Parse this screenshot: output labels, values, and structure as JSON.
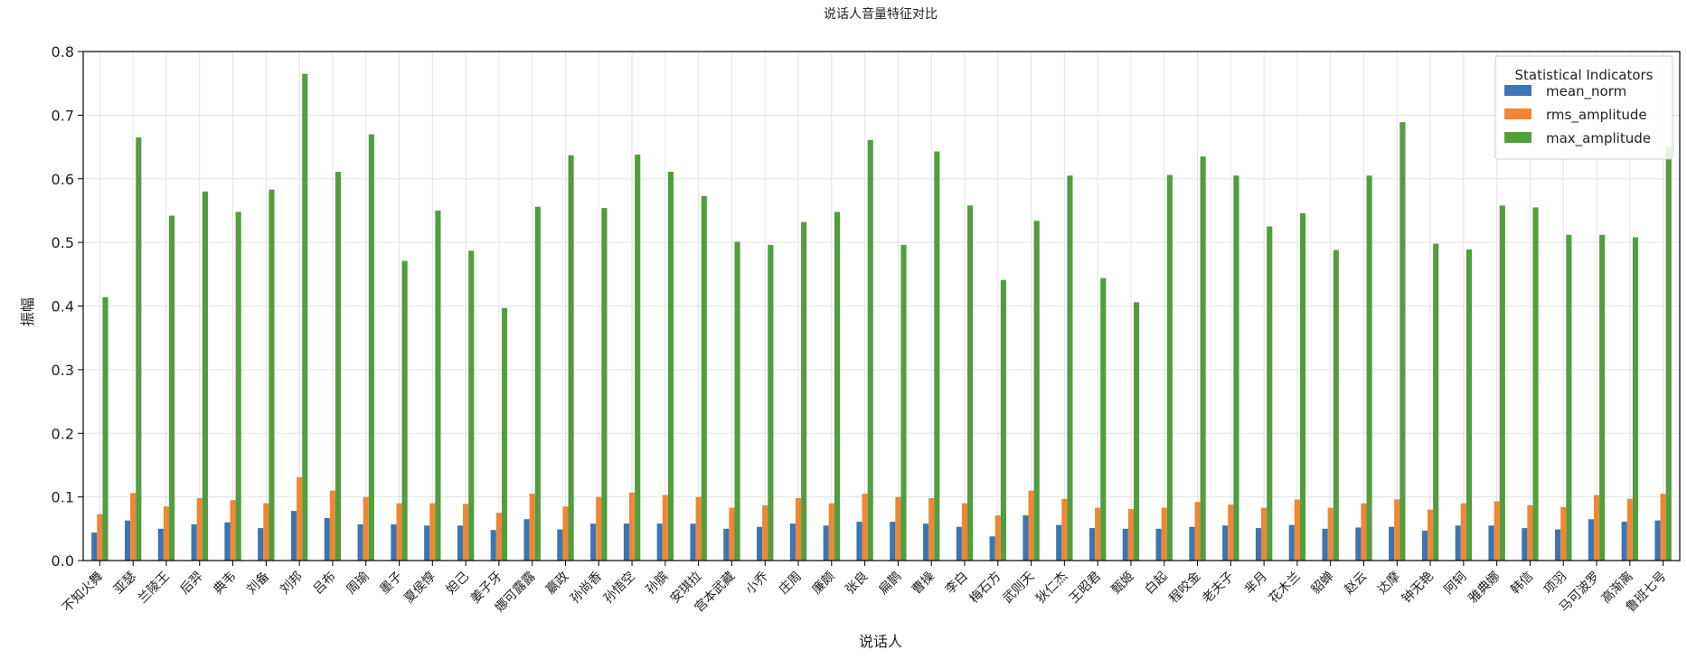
{
  "chart_data": {
    "type": "bar",
    "title": "说话人音量特征对比",
    "xlabel": "说话人",
    "ylabel": "振幅",
    "ylim": [
      0,
      0.8
    ],
    "yticks": [
      0.0,
      0.1,
      0.2,
      0.3,
      0.4,
      0.5,
      0.6,
      0.7,
      0.8
    ],
    "grid": true,
    "legend_title": "Statistical Indicators",
    "legend_position": "top-right",
    "categories": [
      "不知火舞",
      "亚瑟",
      "兰陵王",
      "后羿",
      "典韦",
      "刘备",
      "刘邦",
      "吕布",
      "周瑜",
      "墨子",
      "夏侯惇",
      "妲己",
      "姜子牙",
      "娜可露露",
      "嬴政",
      "孙尚香",
      "孙悟空",
      "孙膑",
      "安琪拉",
      "宫本武藏",
      "小乔",
      "庄周",
      "廉颇",
      "张良",
      "扁鹊",
      "曹操",
      "李白",
      "梅石方",
      "武则天",
      "狄仁杰",
      "王昭君",
      "甄姬",
      "白起",
      "程咬金",
      "老夫子",
      "芈月",
      "花木兰",
      "貂蝉",
      "赵云",
      "达摩",
      "钟无艳",
      "阿轲",
      "雅典娜",
      "韩信",
      "项羽",
      "马可波罗",
      "高渐离",
      "鲁班七号"
    ],
    "series": [
      {
        "name": "mean_norm",
        "color": "#3a76b2",
        "values": [
          0.044,
          0.063,
          0.05,
          0.057,
          0.06,
          0.051,
          0.078,
          0.067,
          0.057,
          0.057,
          0.055,
          0.055,
          0.048,
          0.065,
          0.049,
          0.058,
          0.058,
          0.058,
          0.058,
          0.05,
          0.053,
          0.058,
          0.055,
          0.061,
          0.061,
          0.058,
          0.053,
          0.038,
          0.071,
          0.056,
          0.051,
          0.05,
          0.05,
          0.053,
          0.055,
          0.051,
          0.056,
          0.05,
          0.052,
          0.053,
          0.047,
          0.055,
          0.055,
          0.051,
          0.049,
          0.065,
          0.061,
          0.063
        ]
      },
      {
        "name": "rms_amplitude",
        "color": "#ef8636",
        "values": [
          0.073,
          0.106,
          0.085,
          0.098,
          0.095,
          0.09,
          0.131,
          0.11,
          0.1,
          0.09,
          0.09,
          0.089,
          0.075,
          0.105,
          0.085,
          0.1,
          0.107,
          0.103,
          0.1,
          0.083,
          0.087,
          0.098,
          0.09,
          0.105,
          0.1,
          0.098,
          0.09,
          0.071,
          0.11,
          0.097,
          0.083,
          0.081,
          0.083,
          0.092,
          0.088,
          0.083,
          0.096,
          0.083,
          0.09,
          0.096,
          0.08,
          0.09,
          0.093,
          0.087,
          0.084,
          0.103,
          0.097,
          0.105
        ]
      },
      {
        "name": "max_amplitude",
        "color": "#519e3e",
        "values": [
          0.414,
          0.665,
          0.542,
          0.58,
          0.548,
          0.583,
          0.765,
          0.611,
          0.67,
          0.471,
          0.55,
          0.487,
          0.397,
          0.556,
          0.637,
          0.554,
          0.638,
          0.611,
          0.573,
          0.501,
          0.496,
          0.532,
          0.548,
          0.661,
          0.496,
          0.643,
          0.558,
          0.441,
          0.534,
          0.605,
          0.444,
          0.406,
          0.606,
          0.635,
          0.605,
          0.525,
          0.546,
          0.488,
          0.605,
          0.689,
          0.498,
          0.489,
          0.558,
          0.555,
          0.512,
          0.512,
          0.508,
          0.651
        ]
      }
    ]
  }
}
